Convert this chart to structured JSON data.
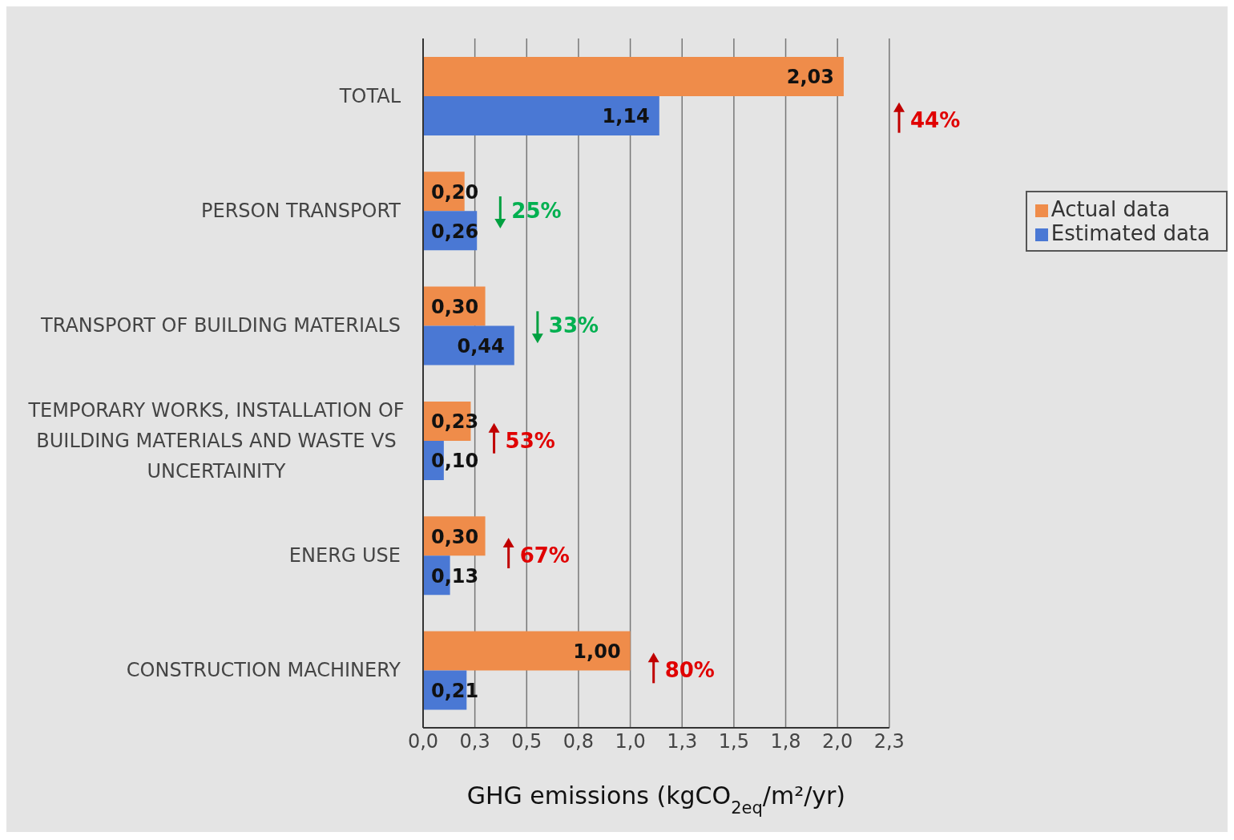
{
  "chart_data": {
    "type": "bar",
    "orientation": "horizontal",
    "xlabel": "GHG emissions (kgCO$_{2eq}$/m²/yr)",
    "categories": [
      "TOTAL",
      "PERSON TRANSPORT",
      "TRANSPORT OF BUILDING MATERIALS",
      "TEMPORARY WORKS, INSTALLATION OF BUILDING MATERIALS AND WASTE VS UNCERTAINITY",
      "ENERG USE",
      "CONSTRUCTION MACHINERY"
    ],
    "series": [
      {
        "name": "Actual data",
        "color": "#ef8c4a",
        "values": [
          2.03,
          0.2,
          0.3,
          0.23,
          0.3,
          1.0
        ],
        "value_labels": [
          "2,03",
          "0,20",
          "0,30",
          "0,23",
          "0,30",
          "1,00"
        ]
      },
      {
        "name": "Estimated data",
        "color": "#4a78d4",
        "values": [
          1.14,
          0.26,
          0.44,
          0.1,
          0.13,
          0.21
        ],
        "value_labels": [
          "1,14",
          "0,26",
          "0,44",
          "0,10",
          "0,13",
          "0,21"
        ]
      }
    ],
    "xlim": [
      0,
      2.25
    ],
    "xticks": [
      {
        "value": 0,
        "label": "0,0"
      },
      {
        "value": 0.25,
        "label": "0,3"
      },
      {
        "value": 0.5,
        "label": "0,5"
      },
      {
        "value": 0.75,
        "label": "0,8"
      },
      {
        "value": 1,
        "label": "1,0"
      },
      {
        "value": 1.25,
        "label": "1,3"
      },
      {
        "value": 1.5,
        "label": "1,5"
      },
      {
        "value": 1.75,
        "label": "1,8"
      },
      {
        "value": 2,
        "label": "2,0"
      },
      {
        "value": 2.25,
        "label": "2,3"
      }
    ],
    "grid": "x",
    "legend": "right",
    "annotations": [
      "44%",
      "25%",
      "33%",
      "53%",
      "67%",
      "80%"
    ]
  }
}
